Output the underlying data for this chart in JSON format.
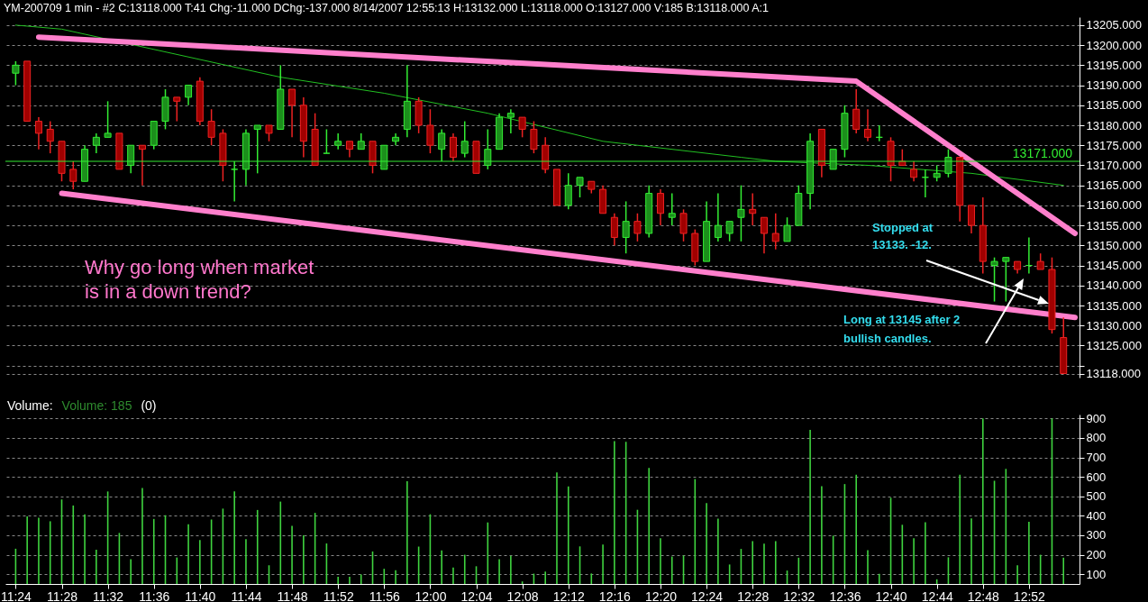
{
  "chart_data": [
    {
      "type": "candlestick",
      "title": "YM-200709 1 min  - #2   C:13118.000  T:41  Chg:-11.000  DChg:-137.000  8/14/2007  12:55:13  H:13132.000  L:13118.000  O:13127.000  V:185  B:13118.000  A:1",
      "x": [
        "2007-08-14T11:24",
        "2007-08-14T11:25",
        "2007-08-14T11:26",
        "2007-08-14T11:27",
        "2007-08-14T11:28",
        "2007-08-14T11:29",
        "2007-08-14T11:30",
        "2007-08-14T11:31",
        "2007-08-14T11:32",
        "2007-08-14T11:33",
        "2007-08-14T11:34",
        "2007-08-14T11:35",
        "2007-08-14T11:36",
        "2007-08-14T11:37",
        "2007-08-14T11:38",
        "2007-08-14T11:39",
        "2007-08-14T11:40",
        "2007-08-14T11:41",
        "2007-08-14T11:42",
        "2007-08-14T11:43",
        "2007-08-14T11:44",
        "2007-08-14T11:45",
        "2007-08-14T11:46",
        "2007-08-14T11:47",
        "2007-08-14T11:48",
        "2007-08-14T11:49",
        "2007-08-14T11:50",
        "2007-08-14T11:51",
        "2007-08-14T11:52",
        "2007-08-14T11:53",
        "2007-08-14T11:54",
        "2007-08-14T11:55",
        "2007-08-14T11:56",
        "2007-08-14T11:57",
        "2007-08-14T11:58",
        "2007-08-14T11:59",
        "2007-08-14T12:00",
        "2007-08-14T12:01",
        "2007-08-14T12:02",
        "2007-08-14T12:03",
        "2007-08-14T12:04",
        "2007-08-14T12:05",
        "2007-08-14T12:06",
        "2007-08-14T12:07",
        "2007-08-14T12:08",
        "2007-08-14T12:09",
        "2007-08-14T12:10",
        "2007-08-14T12:11",
        "2007-08-14T12:12",
        "2007-08-14T12:13",
        "2007-08-14T12:14",
        "2007-08-14T12:15",
        "2007-08-14T12:16",
        "2007-08-14T12:17",
        "2007-08-14T12:18",
        "2007-08-14T12:19",
        "2007-08-14T12:20",
        "2007-08-14T12:21",
        "2007-08-14T12:22",
        "2007-08-14T12:23",
        "2007-08-14T12:24",
        "2007-08-14T12:25",
        "2007-08-14T12:26",
        "2007-08-14T12:27",
        "2007-08-14T12:28",
        "2007-08-14T12:29",
        "2007-08-14T12:30",
        "2007-08-14T12:31",
        "2007-08-14T12:32",
        "2007-08-14T12:33",
        "2007-08-14T12:34",
        "2007-08-14T12:35",
        "2007-08-14T12:36",
        "2007-08-14T12:37",
        "2007-08-14T12:38",
        "2007-08-14T12:39",
        "2007-08-14T12:40",
        "2007-08-14T12:41",
        "2007-08-14T12:42",
        "2007-08-14T12:43",
        "2007-08-14T12:44",
        "2007-08-14T12:45",
        "2007-08-14T12:46",
        "2007-08-14T12:47",
        "2007-08-14T12:48",
        "2007-08-14T12:49",
        "2007-08-14T12:50",
        "2007-08-14T12:51",
        "2007-08-14T12:52",
        "2007-08-14T12:53",
        "2007-08-14T12:54",
        "2007-08-14T12:55"
      ],
      "ohlc": [
        [
          13193,
          13196,
          13190,
          13195
        ],
        [
          13196,
          13196,
          13181,
          13181
        ],
        [
          13181,
          13182,
          13174,
          13178
        ],
        [
          13179,
          13181,
          13173,
          13176
        ],
        [
          13176,
          13176,
          13166,
          13168
        ],
        [
          13169,
          13171,
          13164,
          13166
        ],
        [
          13166,
          13175,
          13166,
          13174
        ],
        [
          13175,
          13178,
          13173,
          13177
        ],
        [
          13177,
          13186,
          13177,
          13178
        ],
        [
          13178,
          13178,
          13169,
          13169
        ],
        [
          13170,
          13175,
          13168,
          13175
        ],
        [
          13175,
          13175,
          13165,
          13174
        ],
        [
          13175,
          13181,
          13174,
          13181
        ],
        [
          13181,
          13189,
          13179,
          13187
        ],
        [
          13187,
          13187,
          13181,
          13186
        ],
        [
          13187,
          13190,
          13185,
          13190
        ],
        [
          13191,
          13192,
          13180,
          13181
        ],
        [
          13181,
          13184,
          13175,
          13177
        ],
        [
          13178,
          13179,
          13166,
          13170
        ],
        [
          13169,
          13171,
          13161,
          13169
        ],
        [
          13169,
          13179,
          13165,
          13178
        ],
        [
          13179,
          13180,
          13168,
          13180
        ],
        [
          13180,
          13180,
          13176,
          13178
        ],
        [
          13179,
          13195,
          13179,
          13189
        ],
        [
          13189,
          13189,
          13177,
          13185
        ],
        [
          13185,
          13187,
          13172,
          13176
        ],
        [
          13179,
          13183,
          13170,
          13170
        ],
        [
          13173,
          13179,
          13173,
          13173
        ],
        [
          13175,
          13178,
          13174,
          13176
        ],
        [
          13176,
          13176,
          13172,
          13174
        ],
        [
          13174,
          13178,
          13174,
          13176
        ],
        [
          13176,
          13176,
          13168,
          13170
        ],
        [
          13169,
          13175,
          13169,
          13175
        ],
        [
          13176,
          13178,
          13175,
          13177
        ],
        [
          13179,
          13195,
          13177,
          13186
        ],
        [
          13186,
          13187,
          13178,
          13180
        ],
        [
          13180,
          13184,
          13173,
          13175
        ],
        [
          13174,
          13179,
          13171,
          13178
        ],
        [
          13177,
          13178,
          13171,
          13172
        ],
        [
          13173,
          13181,
          13172,
          13176
        ],
        [
          13176,
          13176,
          13168,
          13168
        ],
        [
          13170,
          13179,
          13169,
          13174
        ],
        [
          13174,
          13183,
          13174,
          13182
        ],
        [
          13182,
          13184,
          13178,
          13183
        ],
        [
          13182,
          13182,
          13177,
          13179
        ],
        [
          13179,
          13181,
          13173,
          13174
        ],
        [
          13175,
          13177,
          13168,
          13169
        ],
        [
          13169,
          13169,
          13160,
          13160
        ],
        [
          13160,
          13168,
          13159,
          13165
        ],
        [
          13165,
          13167,
          13162,
          13167
        ],
        [
          13166,
          13166,
          13163,
          13164
        ],
        [
          13164,
          13165,
          13158,
          13158
        ],
        [
          13157,
          13158,
          13150,
          13152
        ],
        [
          13152,
          13161,
          13148,
          13156
        ],
        [
          13156,
          13158,
          13151,
          13153
        ],
        [
          13153,
          13165,
          13152,
          13163
        ],
        [
          13163,
          13164,
          13155,
          13158
        ],
        [
          13157,
          13163,
          13155,
          13158
        ],
        [
          13158,
          13159,
          13151,
          13153
        ],
        [
          13153,
          13154,
          13145,
          13146
        ],
        [
          13146,
          13161,
          13146,
          13156
        ],
        [
          13152,
          13163,
          13151,
          13155
        ],
        [
          13153,
          13156,
          13151,
          13156
        ],
        [
          13157,
          13165,
          13151,
          13159
        ],
        [
          13159,
          13163,
          13155,
          13158
        ],
        [
          13157,
          13157,
          13148,
          13153
        ],
        [
          13153,
          13158,
          13149,
          13151
        ],
        [
          13151,
          13157,
          13151,
          13155
        ],
        [
          13155,
          13165,
          13155,
          13163
        ],
        [
          13163,
          13178,
          13159,
          13176
        ],
        [
          13179,
          13179,
          13167,
          13170
        ],
        [
          13169,
          13174,
          13169,
          13174
        ],
        [
          13174,
          13185,
          13172,
          13183
        ],
        [
          13184,
          13189,
          13178,
          13179
        ],
        [
          13179,
          13184,
          13176,
          13177
        ],
        [
          13177,
          13180,
          13176,
          13177
        ],
        [
          13176,
          13177,
          13166,
          13170
        ],
        [
          13171,
          13174,
          13170,
          13170
        ],
        [
          13169,
          13171,
          13166,
          13167
        ],
        [
          13167,
          13169,
          13162,
          13167
        ],
        [
          13167,
          13170,
          13166,
          13168
        ],
        [
          13168,
          13174,
          13167,
          13172
        ],
        [
          13172,
          13172,
          13156,
          13160
        ],
        [
          13160,
          13160,
          13153,
          13155
        ],
        [
          13155,
          13162,
          13143,
          13146
        ],
        [
          13145,
          13147,
          13136,
          13146
        ],
        [
          13146,
          13147,
          13136,
          13147
        ],
        [
          13146,
          13146,
          13143,
          13144
        ],
        [
          13145,
          13152,
          13143,
          13145
        ],
        [
          13146,
          13148,
          13144,
          13144
        ],
        [
          13144,
          13147,
          13128,
          13129
        ],
        [
          13127,
          13132,
          13118,
          13118
        ]
      ],
      "series": [
        {
          "type": "line",
          "color": "#22c022",
          "x": [
            "2007-08-14T11:24",
            "2007-08-14T11:28",
            "2007-08-14T11:47",
            "2007-08-14T11:56",
            "2007-08-14T12:05",
            "2007-08-14T12:15",
            "2007-08-14T12:27",
            "2007-08-14T12:30",
            "2007-08-14T12:38",
            "2007-08-14T12:47",
            "2007-08-14T12:55"
          ],
          "values": [
            13205,
            13204,
            13192,
            13188,
            13183,
            13176,
            13172,
            13171,
            13170,
            13168,
            13165
          ]
        },
        {
          "type": "line",
          "color": "#ff7fcc",
          "x": [
            "2007-08-14T11:26",
            "2007-08-14T12:37",
            "2007-08-14T12:56"
          ],
          "values": [
            13202,
            13191,
            13153
          ]
        },
        {
          "type": "line",
          "color": "#ff7fcc",
          "x": [
            "2007-08-14T11:28",
            "2007-08-14T12:56"
          ],
          "values": [
            13163,
            13132
          ]
        }
      ],
      "xlim": [
        "2007-08-14T11:23:30",
        "2007-08-14T12:56"
      ],
      "ylim": [
        13117,
        13207
      ],
      "yticks": [
        {
          "value": 13118,
          "label": "13118.000"
        },
        {
          "value": 13120,
          "label": null
        },
        {
          "value": 13125,
          "label": "13125.000"
        },
        {
          "value": 13130,
          "label": "13130.000"
        },
        {
          "value": 13135,
          "label": "13135.000"
        },
        {
          "value": 13140,
          "label": "13140.000"
        },
        {
          "value": 13145,
          "label": "13145.000"
        },
        {
          "value": 13150,
          "label": "13150.000"
        },
        {
          "value": 13155,
          "label": "13155.000"
        },
        {
          "value": 13160,
          "label": "13160.000"
        },
        {
          "value": 13165,
          "label": "13165.000"
        },
        {
          "value": 13170,
          "label": "13170.000"
        },
        {
          "value": 13175,
          "label": "13175.000"
        },
        {
          "value": 13180,
          "label": "13180.000"
        },
        {
          "value": 13185,
          "label": "13185.000"
        },
        {
          "value": 13190,
          "label": "13190.000"
        },
        {
          "value": 13195,
          "label": "13195.000"
        },
        {
          "value": 13200,
          "label": "13200.000"
        },
        {
          "value": 13205,
          "label": "13205.000"
        }
      ],
      "grid": "y",
      "tick_labels": "y",
      "ref_lines": [
        {
          "axis": "y",
          "value": 13171,
          "label": "13171.000",
          "color": "#33ee33"
        }
      ],
      "annotations": [
        "Why go long when market\nis in a down trend?",
        "Stopped at\n13133.  -12.",
        "Long at 13145 after 2\nbullish candles."
      ]
    },
    {
      "type": "bar",
      "title": "Volume:",
      "annotations": [
        "Volume: 185",
        "(0)"
      ],
      "color": "#3fd43f",
      "x": [
        "2007-08-14T11:24",
        "2007-08-14T11:25",
        "2007-08-14T11:26",
        "2007-08-14T11:27",
        "2007-08-14T11:28",
        "2007-08-14T11:29",
        "2007-08-14T11:30",
        "2007-08-14T11:31",
        "2007-08-14T11:32",
        "2007-08-14T11:33",
        "2007-08-14T11:34",
        "2007-08-14T11:35",
        "2007-08-14T11:36",
        "2007-08-14T11:37",
        "2007-08-14T11:38",
        "2007-08-14T11:39",
        "2007-08-14T11:40",
        "2007-08-14T11:41",
        "2007-08-14T11:42",
        "2007-08-14T11:43",
        "2007-08-14T11:44",
        "2007-08-14T11:45",
        "2007-08-14T11:46",
        "2007-08-14T11:47",
        "2007-08-14T11:48",
        "2007-08-14T11:49",
        "2007-08-14T11:50",
        "2007-08-14T11:51",
        "2007-08-14T11:52",
        "2007-08-14T11:53",
        "2007-08-14T11:54",
        "2007-08-14T11:55",
        "2007-08-14T11:56",
        "2007-08-14T11:57",
        "2007-08-14T11:58",
        "2007-08-14T11:59",
        "2007-08-14T12:00",
        "2007-08-14T12:01",
        "2007-08-14T12:02",
        "2007-08-14T12:03",
        "2007-08-14T12:04",
        "2007-08-14T12:05",
        "2007-08-14T12:06",
        "2007-08-14T12:07",
        "2007-08-14T12:08",
        "2007-08-14T12:09",
        "2007-08-14T12:10",
        "2007-08-14T12:11",
        "2007-08-14T12:12",
        "2007-08-14T12:13",
        "2007-08-14T12:14",
        "2007-08-14T12:15",
        "2007-08-14T12:16",
        "2007-08-14T12:17",
        "2007-08-14T12:18",
        "2007-08-14T12:19",
        "2007-08-14T12:20",
        "2007-08-14T12:21",
        "2007-08-14T12:22",
        "2007-08-14T12:23",
        "2007-08-14T12:24",
        "2007-08-14T12:25",
        "2007-08-14T12:26",
        "2007-08-14T12:27",
        "2007-08-14T12:28",
        "2007-08-14T12:29",
        "2007-08-14T12:30",
        "2007-08-14T12:31",
        "2007-08-14T12:32",
        "2007-08-14T12:33",
        "2007-08-14T12:34",
        "2007-08-14T12:35",
        "2007-08-14T12:36",
        "2007-08-14T12:37",
        "2007-08-14T12:38",
        "2007-08-14T12:39",
        "2007-08-14T12:40",
        "2007-08-14T12:41",
        "2007-08-14T12:42",
        "2007-08-14T12:43",
        "2007-08-14T12:44",
        "2007-08-14T12:45",
        "2007-08-14T12:46",
        "2007-08-14T12:47",
        "2007-08-14T12:48",
        "2007-08-14T12:49",
        "2007-08-14T12:50",
        "2007-08-14T12:51",
        "2007-08-14T12:52",
        "2007-08-14T12:53",
        "2007-08-14T12:54",
        "2007-08-14T12:55"
      ],
      "values": [
        231,
        397,
        390,
        372,
        484,
        453,
        408,
        226,
        525,
        312,
        177,
        543,
        384,
        403,
        186,
        357,
        276,
        381,
        437,
        525,
        280,
        430,
        146,
        473,
        348,
        300,
        415,
        258,
        87,
        87,
        99,
        217,
        128,
        121,
        578,
        242,
        408,
        222,
        135,
        200,
        141,
        366,
        177,
        195,
        63,
        103,
        114,
        623,
        551,
        243,
        104,
        252,
        783,
        780,
        431,
        646,
        285,
        191,
        196,
        589,
        465,
        385,
        150,
        230,
        270,
        257,
        270,
        119,
        185,
        841,
        552,
        298,
        563,
        611,
        224,
        102,
        493,
        354,
        285,
        367,
        74,
        187,
        611,
        387,
        900,
        580,
        641,
        146,
        369,
        200,
        900,
        185
      ],
      "xlim": [
        "2007-08-14T11:23:30",
        "2007-08-14T12:56"
      ],
      "ylim": [
        50,
        920
      ],
      "xticks": [
        {
          "value": "2007-08-14T11:24",
          "label": "11:24"
        },
        {
          "value": "2007-08-14T11:28",
          "label": "11:28"
        },
        {
          "value": "2007-08-14T11:32",
          "label": "11:32"
        },
        {
          "value": "2007-08-14T11:36",
          "label": "11:36"
        },
        {
          "value": "2007-08-14T11:40",
          "label": "11:40"
        },
        {
          "value": "2007-08-14T11:44",
          "label": "11:44"
        },
        {
          "value": "2007-08-14T11:48",
          "label": "11:48"
        },
        {
          "value": "2007-08-14T11:52",
          "label": "11:52"
        },
        {
          "value": "2007-08-14T11:56",
          "label": "11:56"
        },
        {
          "value": "2007-08-14T12:00",
          "label": "12:00"
        },
        {
          "value": "2007-08-14T12:04",
          "label": "12:04"
        },
        {
          "value": "2007-08-14T12:08",
          "label": "12:08"
        },
        {
          "value": "2007-08-14T12:12",
          "label": "12:12"
        },
        {
          "value": "2007-08-14T12:16",
          "label": "12:16"
        },
        {
          "value": "2007-08-14T12:20",
          "label": "12:20"
        },
        {
          "value": "2007-08-14T12:24",
          "label": "12:24"
        },
        {
          "value": "2007-08-14T12:28",
          "label": "12:28"
        },
        {
          "value": "2007-08-14T12:32",
          "label": "12:32"
        },
        {
          "value": "2007-08-14T12:36",
          "label": "12:36"
        },
        {
          "value": "2007-08-14T12:40",
          "label": "12:40"
        },
        {
          "value": "2007-08-14T12:44",
          "label": "12:44"
        },
        {
          "value": "2007-08-14T12:48",
          "label": "12:48"
        },
        {
          "value": "2007-08-14T12:52",
          "label": "12:52"
        }
      ],
      "yticks": [
        100,
        200,
        300,
        400,
        500,
        600,
        700,
        800,
        900
      ],
      "grid": "y"
    }
  ]
}
